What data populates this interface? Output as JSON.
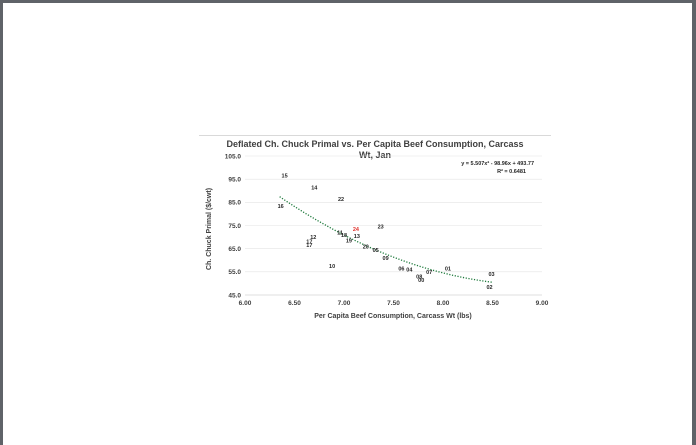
{
  "chart_data": {
    "type": "scatter",
    "title_lines": [
      "Deflated Ch. Chuck Primal vs. Per Capita Beef Consumption, Carcass",
      "Wt, Jan"
    ],
    "xlabel": "Per Capita Beef Consumption, Carcass Wt (lbs)",
    "ylabel": "Ch. Chuck Primal ($/cwt)",
    "xlim": [
      6.0,
      9.0
    ],
    "ylim": [
      45.0,
      105.0
    ],
    "x_ticks": [
      "6.00",
      "6.50",
      "7.00",
      "7.50",
      "8.00",
      "8.50",
      "9.00"
    ],
    "y_ticks": [
      "45.0",
      "55.0",
      "65.0",
      "75.0",
      "85.0",
      "95.0",
      "105.0"
    ],
    "grid": "horizontal",
    "colors": {
      "trendline": "#1e7a3c",
      "highlight": "#e0302b",
      "text": "#262626"
    },
    "trendline": {
      "type": "polynomial",
      "equation": "y = 5.507x² - 98.96x + 493.77",
      "r_squared": "R² = 0.6481",
      "x_range": [
        6.35,
        8.5
      ],
      "coefficients": [
        5.507,
        -98.96,
        493.77
      ]
    },
    "points": [
      {
        "label": "15",
        "x": 6.4,
        "y": 96.5
      },
      {
        "label": "14",
        "x": 6.7,
        "y": 91.5
      },
      {
        "label": "22",
        "x": 6.97,
        "y": 86.5
      },
      {
        "label": "16",
        "x": 6.36,
        "y": 83.5
      },
      {
        "label": "23",
        "x": 7.37,
        "y": 74.5
      },
      {
        "label": "24",
        "x": 7.12,
        "y": 73.5,
        "highlight": true
      },
      {
        "label": "11",
        "x": 6.96,
        "y": 72.0
      },
      {
        "label": "18",
        "x": 7.0,
        "y": 71.0
      },
      {
        "label": "13",
        "x": 7.13,
        "y": 70.5
      },
      {
        "label": "12",
        "x": 6.69,
        "y": 70.0
      },
      {
        "label": "19",
        "x": 7.05,
        "y": 68.5
      },
      {
        "label": "17",
        "x": 6.65,
        "y": 68.0
      },
      {
        "label": "17",
        "x": 6.65,
        "y": 66.5
      },
      {
        "label": "20",
        "x": 7.22,
        "y": 66.0
      },
      {
        "label": "05",
        "x": 7.32,
        "y": 64.5
      },
      {
        "label": "09",
        "x": 7.42,
        "y": 61.0
      },
      {
        "label": "10",
        "x": 6.88,
        "y": 57.5
      },
      {
        "label": "06",
        "x": 7.58,
        "y": 56.5
      },
      {
        "label": "04",
        "x": 7.66,
        "y": 56.0
      },
      {
        "label": "01",
        "x": 8.05,
        "y": 56.5
      },
      {
        "label": "07",
        "x": 7.86,
        "y": 55.0
      },
      {
        "label": "03",
        "x": 8.49,
        "y": 54.0
      },
      {
        "label": "08",
        "x": 7.76,
        "y": 53.0
      },
      {
        "label": "00",
        "x": 7.78,
        "y": 51.5
      },
      {
        "label": "02",
        "x": 8.47,
        "y": 48.5
      }
    ]
  }
}
